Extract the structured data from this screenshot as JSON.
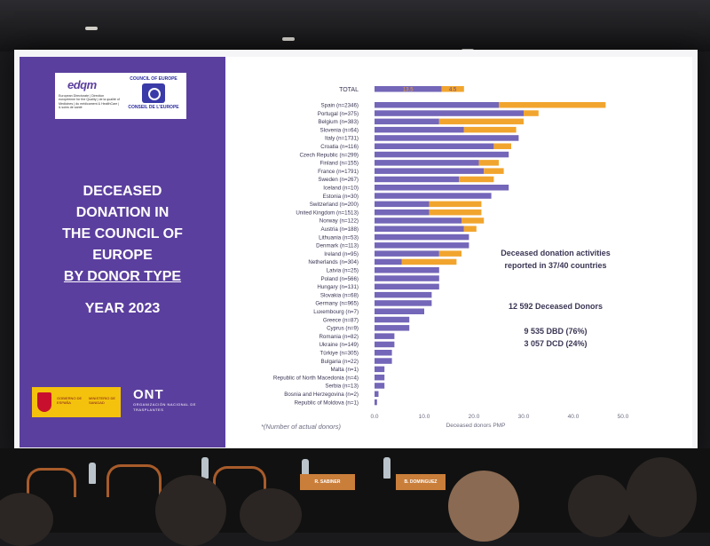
{
  "slide": {
    "title_lines": [
      "DECEASED",
      "DONATION IN",
      "THE COUNCIL OF",
      "EUROPE",
      "BY DONOR TYPE"
    ],
    "year": "YEAR 2023",
    "logo_edqm": "edqm",
    "logo_coe_top": "COUNCIL OF EUROPE",
    "logo_coe_bottom": "CONSEIL DE L'EUROPE",
    "logo_edqm_sub": "European Directorate | Direction européenne for the Quality | de la qualité of Medicines | du médicament & HealthCare | & soins de santé",
    "logo_spain_1": "GOBIERNO DE ESPAÑA",
    "logo_spain_2": "MINISTERIO DE SANIDAD",
    "logo_ont": "ONT",
    "logo_ont_sub": "ORGANIZACIÓN NACIONAL DE TRASPLANTES",
    "annotations": {
      "activities": "Deceased donation activities reported in 37/40 countries",
      "total_donors": "12 592 Deceased Donors",
      "dbd": "9 535 DBD (76%)",
      "dcd": "3 057 DCD (24%)"
    },
    "footnote": "*(Number of actual donors)",
    "name_cards": [
      "R. SABINER",
      "B. DOMINGUEZ"
    ]
  },
  "chart_data": {
    "type": "bar",
    "orientation": "horizontal",
    "stacked": true,
    "xlabel": "Deceased donors PMP",
    "xlim": [
      0,
      50
    ],
    "xticks": [
      "0.0",
      "10.0",
      "20.0",
      "30.0",
      "40.0",
      "50.0"
    ],
    "colors": {
      "DBD": "#7466b8",
      "DCD": "#f1a52e"
    },
    "total": {
      "label": "TOTAL",
      "DBD": 13.5,
      "DCD": 4.5,
      "DBD_label": "13.5",
      "DCD_label": "4.5"
    },
    "categories": [
      "Spain (n=2346)",
      "Portugal (n=375)",
      "Belgium (n=383)",
      "Slovenia (n=64)",
      "Italy (n=1731)",
      "Croatia (n=116)",
      "Czech Republic (n=299)",
      "Finland (n=155)",
      "France (n=1791)",
      "Sweden (n=267)",
      "Iceland (n=10)",
      "Estonia (n=30)",
      "Switzerland (n=200)",
      "United Kingdom (n=1513)",
      "Norway (n=122)",
      "Austria (n=188)",
      "Lithuania (n=53)",
      "Denmark (n=113)",
      "Ireland (n=95)",
      "Netherlands (n=304)",
      "Latvia (n=25)",
      "Poland (n=566)",
      "Hungary (n=131)",
      "Slovakia (n=68)",
      "Germany (n=965)",
      "Luxembourg (n=7)",
      "Greece (n=87)",
      "Cyprus (n=9)",
      "Romania (n=82)",
      "Ukraine (n=149)",
      "Türkiye (n=305)",
      "Bulgaria (n=22)",
      "Malta (n=1)",
      "Republic of North Macedonia (n=4)",
      "Serbia (n=13)",
      "Bosnia and Herzegovina (n=2)",
      "Republic of Moldova (n=1)"
    ],
    "series": [
      {
        "name": "DBD",
        "values": [
          25.0,
          30.0,
          13.0,
          18.0,
          29.0,
          24.0,
          27.0,
          21.0,
          22.0,
          17.0,
          27.0,
          23.5,
          11.0,
          11.0,
          17.5,
          18.0,
          19.0,
          19.0,
          13.0,
          5.5,
          13.0,
          13.0,
          13.0,
          11.5,
          11.5,
          10.0,
          7.0,
          7.0,
          4.0,
          4.0,
          3.5,
          3.5,
          2.0,
          2.0,
          2.0,
          0.8,
          0.5
        ]
      },
      {
        "name": "DCD",
        "values": [
          21.5,
          3.0,
          17.0,
          10.5,
          0.0,
          3.5,
          0.0,
          4.0,
          4.0,
          7.0,
          0.0,
          0.0,
          10.5,
          10.5,
          4.5,
          2.5,
          0.0,
          0.0,
          4.5,
          11.0,
          0.0,
          0.0,
          0.0,
          0.0,
          0.0,
          0.0,
          0.0,
          0.0,
          0.0,
          0.0,
          0.0,
          0.0,
          0.0,
          0.0,
          0.0,
          0.0,
          0.0
        ]
      }
    ]
  }
}
